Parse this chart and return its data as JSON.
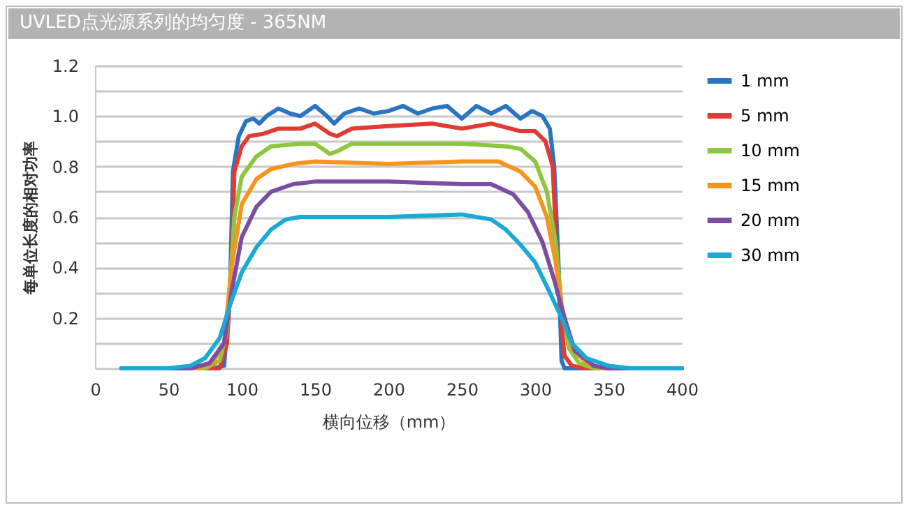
{
  "chart_data": {
    "type": "line",
    "title": "UVLED点光源系列的均匀度  -  365NM",
    "xlabel": "横向位移（mm）",
    "ylabel": "每单位长度的相对功率",
    "xlim": [
      0,
      400
    ],
    "xticks": [
      0,
      50,
      100,
      150,
      200,
      250,
      300,
      350,
      400
    ],
    "ylim": [
      0,
      1.2
    ],
    "yticks": [
      {
        "value": 0,
        "label": null
      },
      {
        "value": 0.1,
        "label": null
      },
      0.2,
      {
        "value": 0.3,
        "label": null
      },
      0.4,
      {
        "value": 0.5,
        "label": null
      },
      0.6,
      {
        "value": 0.7,
        "label": null
      },
      0.8,
      {
        "value": 0.9,
        "label": null
      },
      {
        "value": 1,
        "label": "1.0"
      },
      {
        "value": 1.1,
        "label": null
      },
      1.2
    ],
    "grid": "y",
    "legend": "right",
    "marker": "none",
    "line_style": "solid",
    "series": [
      {
        "name": "1 mm",
        "color": "#2a74c4",
        "x": [
          18,
          80,
          88,
          92,
          94,
          98,
          103,
          108,
          112,
          117,
          125,
          133,
          140,
          150,
          158,
          163,
          170,
          180,
          190,
          200,
          210,
          220,
          230,
          240,
          250,
          260,
          270,
          280,
          290,
          298,
          305,
          310,
          313,
          316,
          318,
          320,
          400
        ],
        "values": [
          0,
          0,
          0.01,
          0.3,
          0.78,
          0.92,
          0.98,
          0.99,
          0.97,
          1.0,
          1.03,
          1.01,
          1.0,
          1.04,
          1.0,
          0.97,
          1.01,
          1.03,
          1.01,
          1.02,
          1.04,
          1.01,
          1.03,
          1.04,
          0.99,
          1.04,
          1.01,
          1.04,
          0.99,
          1.02,
          1.0,
          0.95,
          0.8,
          0.4,
          0.03,
          0,
          0
        ]
      },
      {
        "name": "5 mm",
        "color": "#e23b33",
        "x": [
          18,
          85,
          90,
          93,
          95,
          100,
          105,
          115,
          125,
          140,
          150,
          160,
          165,
          175,
          200,
          230,
          250,
          270,
          290,
          300,
          307,
          312,
          316,
          320,
          325,
          335,
          400
        ],
        "values": [
          0,
          0,
          0.1,
          0.4,
          0.78,
          0.88,
          0.92,
          0.93,
          0.95,
          0.95,
          0.97,
          0.93,
          0.92,
          0.95,
          0.96,
          0.97,
          0.95,
          0.97,
          0.94,
          0.94,
          0.9,
          0.8,
          0.3,
          0.05,
          0.01,
          0,
          0
        ]
      },
      {
        "name": "10 mm",
        "color": "#8dc63f",
        "x": [
          18,
          75,
          85,
          90,
          95,
          100,
          110,
          120,
          140,
          150,
          160,
          165,
          175,
          200,
          250,
          280,
          290,
          300,
          308,
          314,
          318,
          323,
          330,
          340,
          400
        ],
        "values": [
          0,
          0,
          0.03,
          0.15,
          0.6,
          0.76,
          0.84,
          0.88,
          0.89,
          0.89,
          0.85,
          0.86,
          0.89,
          0.89,
          0.89,
          0.88,
          0.87,
          0.82,
          0.7,
          0.5,
          0.25,
          0.08,
          0.02,
          0,
          0
        ]
      },
      {
        "name": "15 mm",
        "color": "#f7941d",
        "x": [
          18,
          70,
          80,
          88,
          93,
          100,
          110,
          120,
          135,
          150,
          200,
          250,
          275,
          290,
          300,
          308,
          314,
          318,
          325,
          335,
          345,
          400
        ],
        "values": [
          0,
          0,
          0.02,
          0.1,
          0.4,
          0.65,
          0.75,
          0.79,
          0.81,
          0.82,
          0.81,
          0.82,
          0.82,
          0.78,
          0.72,
          0.6,
          0.42,
          0.25,
          0.08,
          0.02,
          0,
          0
        ]
      },
      {
        "name": "20 mm",
        "color": "#7b4ea3",
        "x": [
          18,
          65,
          78,
          88,
          93,
          100,
          110,
          120,
          135,
          150,
          200,
          250,
          270,
          285,
          295,
          305,
          313,
          320,
          327,
          340,
          350,
          400
        ],
        "values": [
          0,
          0,
          0.02,
          0.1,
          0.3,
          0.52,
          0.64,
          0.7,
          0.73,
          0.74,
          0.74,
          0.73,
          0.73,
          0.69,
          0.62,
          0.5,
          0.35,
          0.2,
          0.07,
          0.01,
          0,
          0
        ]
      },
      {
        "name": "30 mm",
        "color": "#1ba9d6",
        "x": [
          18,
          50,
          65,
          75,
          85,
          92,
          100,
          110,
          120,
          130,
          140,
          200,
          250,
          270,
          280,
          290,
          300,
          310,
          318,
          325,
          335,
          350,
          365,
          400
        ],
        "values": [
          0,
          0,
          0.01,
          0.04,
          0.12,
          0.25,
          0.38,
          0.48,
          0.55,
          0.59,
          0.6,
          0.6,
          0.61,
          0.59,
          0.55,
          0.49,
          0.42,
          0.3,
          0.2,
          0.1,
          0.04,
          0.01,
          0,
          0
        ]
      }
    ]
  }
}
